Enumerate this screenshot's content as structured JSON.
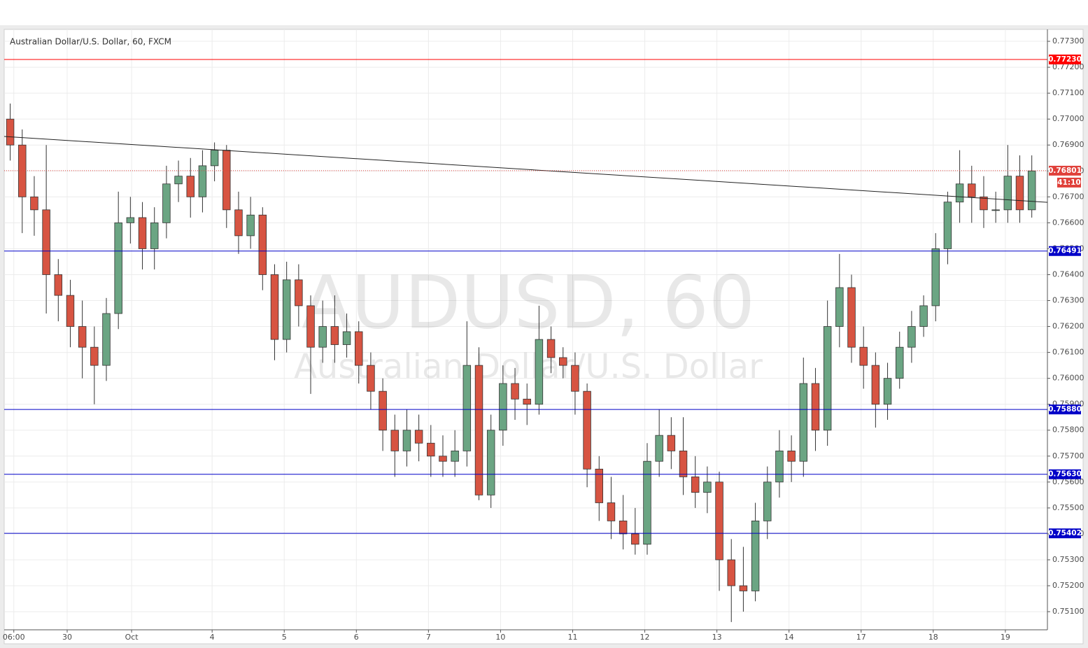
{
  "chart_data": {
    "type": "candlestick",
    "title": "Australian Dollar/U.S. Dollar, 60, FXCM",
    "watermark": {
      "symbol": "AUDUSD, 60",
      "description": "Australian Dollar/U.S. Dollar"
    },
    "up_color": "#6ba583",
    "down_color": "#d75442",
    "grid": true,
    "xlim": [
      0,
      86.8
    ],
    "ylim": [
      0.7503,
      0.77346
    ],
    "xticks": [
      {
        "value": 0.8,
        "label": "06:00"
      },
      {
        "value": 5.24,
        "label": "30"
      },
      {
        "value": 10.6,
        "label": "Oct"
      },
      {
        "value": 17.3,
        "label": "4"
      },
      {
        "value": 23.3,
        "label": "5"
      },
      {
        "value": 29.3,
        "label": "6"
      },
      {
        "value": 35.3,
        "label": "7"
      },
      {
        "value": 41.3,
        "label": "10"
      },
      {
        "value": 47.3,
        "label": "11"
      },
      {
        "value": 53.3,
        "label": "12"
      },
      {
        "value": 59.3,
        "label": "13"
      },
      {
        "value": 65.3,
        "label": "14"
      },
      {
        "value": 71.3,
        "label": "17"
      },
      {
        "value": 77.3,
        "label": "18"
      },
      {
        "value": 83.3,
        "label": "19"
      }
    ],
    "yticks": [
      {
        "value": 0.751,
        "label": "0.75100"
      },
      {
        "value": 0.752,
        "label": "0.75200"
      },
      {
        "value": 0.753,
        "label": "0.75300"
      },
      {
        "value": 0.754,
        "label": "0.75400"
      },
      {
        "value": 0.755,
        "label": "0.75500"
      },
      {
        "value": 0.756,
        "label": "0.75600"
      },
      {
        "value": 0.757,
        "label": "0.75700"
      },
      {
        "value": 0.758,
        "label": "0.75800"
      },
      {
        "value": 0.759,
        "label": "0.75900"
      },
      {
        "value": 0.76,
        "label": "0.76000"
      },
      {
        "value": 0.761,
        "label": "0.76100"
      },
      {
        "value": 0.762,
        "label": "0.76200"
      },
      {
        "value": 0.763,
        "label": "0.76300"
      },
      {
        "value": 0.764,
        "label": "0.76400"
      },
      {
        "value": 0.765,
        "label": "0.76500"
      },
      {
        "value": 0.766,
        "label": "0.76600"
      },
      {
        "value": 0.767,
        "label": "0.76700"
      },
      {
        "value": 0.768,
        "label": "0.76800"
      },
      {
        "value": 0.769,
        "label": "0.76900"
      },
      {
        "value": 0.77,
        "label": "0.77000"
      },
      {
        "value": 0.771,
        "label": "0.77100"
      },
      {
        "value": 0.772,
        "label": "0.77200"
      },
      {
        "value": 0.773,
        "label": "0.77300"
      }
    ],
    "x": [
      0.5,
      1.5,
      2.5,
      3.5,
      4.5,
      5.5,
      6.5,
      7.5,
      8.5,
      9.5,
      10.5,
      11.5,
      12.5,
      13.5,
      14.5,
      15.5,
      16.5,
      17.5,
      18.5,
      19.5,
      20.5,
      21.5,
      22.5,
      23.5,
      24.5,
      25.5,
      26.5,
      27.5,
      28.5,
      29.5,
      30.5,
      31.5,
      32.5,
      33.5,
      34.5,
      35.5,
      36.5,
      37.5,
      38.5,
      39.5,
      40.5,
      41.5,
      42.5,
      43.5,
      44.5,
      45.5,
      46.5,
      47.5,
      48.5,
      49.5,
      50.5,
      51.5,
      52.5,
      53.5,
      54.5,
      55.5,
      56.5,
      57.5,
      58.5,
      59.5,
      60.5,
      61.5,
      62.5,
      63.5,
      64.5,
      65.5,
      66.5,
      67.5,
      68.5,
      69.5,
      70.5,
      71.5,
      72.5,
      73.5,
      74.5,
      75.5,
      76.5,
      77.5,
      78.5,
      79.5,
      80.5,
      81.5,
      82.5,
      83.5,
      84.5,
      85.5
    ],
    "open": [
      0.77,
      0.769,
      0.767,
      0.7665,
      0.764,
      0.7632,
      0.762,
      0.7612,
      0.7605,
      0.7625,
      0.766,
      0.7662,
      0.765,
      0.766,
      0.7675,
      0.7678,
      0.767,
      0.7682,
      0.7688,
      0.7665,
      0.7655,
      0.7663,
      0.764,
      0.7615,
      0.7638,
      0.7628,
      0.7612,
      0.762,
      0.7613,
      0.7618,
      0.7605,
      0.7595,
      0.758,
      0.7572,
      0.758,
      0.7575,
      0.757,
      0.7568,
      0.7572,
      0.7605,
      0.7555,
      0.758,
      0.7598,
      0.7592,
      0.759,
      0.7615,
      0.7608,
      0.7605,
      0.7595,
      0.7565,
      0.7552,
      0.7545,
      0.754,
      0.7536,
      0.7568,
      0.7578,
      0.7572,
      0.7562,
      0.7556,
      0.756,
      0.753,
      0.752,
      0.7518,
      0.7545,
      0.756,
      0.7572,
      0.7568,
      0.7598,
      0.758,
      0.762,
      0.7635,
      0.7612,
      0.7605,
      0.759,
      0.76,
      0.7612,
      0.762,
      0.7628,
      0.765,
      0.7668,
      0.7675,
      0.767,
      0.7665,
      0.7665,
      0.7678,
      0.7665
    ],
    "high": [
      0.7706,
      0.7696,
      0.7678,
      0.769,
      0.7646,
      0.7638,
      0.763,
      0.762,
      0.7631,
      0.7672,
      0.767,
      0.7668,
      0.7666,
      0.7682,
      0.7684,
      0.7685,
      0.7688,
      0.7691,
      0.769,
      0.7672,
      0.767,
      0.7666,
      0.7644,
      0.7645,
      0.7644,
      0.7632,
      0.763,
      0.7632,
      0.7625,
      0.7622,
      0.761,
      0.76,
      0.7586,
      0.7588,
      0.7586,
      0.7582,
      0.7578,
      0.758,
      0.7622,
      0.7612,
      0.7586,
      0.7605,
      0.7604,
      0.7598,
      0.7628,
      0.762,
      0.7612,
      0.761,
      0.7598,
      0.757,
      0.7562,
      0.7555,
      0.755,
      0.7575,
      0.7588,
      0.7585,
      0.7585,
      0.757,
      0.7566,
      0.7564,
      0.7538,
      0.7535,
      0.7552,
      0.7566,
      0.758,
      0.7578,
      0.7608,
      0.7604,
      0.763,
      0.7648,
      0.764,
      0.762,
      0.761,
      0.7606,
      0.7618,
      0.7626,
      0.7632,
      0.7656,
      0.7672,
      0.7688,
      0.7682,
      0.7678,
      0.7672,
      0.769,
      0.7686,
      0.7686
    ],
    "low": [
      0.7684,
      0.7656,
      0.7655,
      0.7625,
      0.7622,
      0.7612,
      0.76,
      0.759,
      0.7599,
      0.7619,
      0.7652,
      0.7642,
      0.7642,
      0.7654,
      0.7668,
      0.7662,
      0.7664,
      0.7676,
      0.7658,
      0.7648,
      0.765,
      0.7634,
      0.7607,
      0.761,
      0.762,
      0.7594,
      0.7606,
      0.7606,
      0.7608,
      0.7598,
      0.7588,
      0.7572,
      0.7562,
      0.7566,
      0.7568,
      0.7562,
      0.7562,
      0.7562,
      0.7566,
      0.7553,
      0.755,
      0.7574,
      0.7584,
      0.7582,
      0.7586,
      0.7602,
      0.76,
      0.7586,
      0.7558,
      0.7545,
      0.7538,
      0.7534,
      0.7532,
      0.7532,
      0.7562,
      0.7565,
      0.7555,
      0.755,
      0.7548,
      0.7518,
      0.7506,
      0.751,
      0.7514,
      0.7538,
      0.7554,
      0.756,
      0.7562,
      0.7572,
      0.7574,
      0.7612,
      0.7606,
      0.7596,
      0.7581,
      0.7584,
      0.7596,
      0.7606,
      0.7616,
      0.7622,
      0.7644,
      0.766,
      0.766,
      0.7658,
      0.766,
      0.766,
      0.766,
      0.7662
    ],
    "close": [
      0.769,
      0.767,
      0.7665,
      0.764,
      0.7632,
      0.762,
      0.7612,
      0.7605,
      0.7625,
      0.766,
      0.7662,
      0.765,
      0.766,
      0.7675,
      0.7678,
      0.767,
      0.7682,
      0.7688,
      0.7665,
      0.7655,
      0.7663,
      0.764,
      0.7615,
      0.7638,
      0.7628,
      0.7612,
      0.762,
      0.7613,
      0.7618,
      0.7605,
      0.7595,
      0.758,
      0.7572,
      0.758,
      0.7575,
      0.757,
      0.7568,
      0.7572,
      0.7605,
      0.7555,
      0.758,
      0.7598,
      0.7592,
      0.759,
      0.7615,
      0.7608,
      0.7605,
      0.7595,
      0.7565,
      0.7552,
      0.7545,
      0.754,
      0.7536,
      0.7568,
      0.7578,
      0.7572,
      0.7562,
      0.7556,
      0.756,
      0.753,
      0.752,
      0.7518,
      0.7545,
      0.756,
      0.7572,
      0.7568,
      0.7598,
      0.758,
      0.762,
      0.7635,
      0.7612,
      0.7605,
      0.759,
      0.76,
      0.7612,
      0.762,
      0.7628,
      0.765,
      0.7668,
      0.7675,
      0.767,
      0.7665,
      0.7665,
      0.7678,
      0.7665,
      0.768
    ],
    "levels": [
      {
        "value": 0.7723,
        "label": "0.77230",
        "color": "#ff0000"
      },
      {
        "value": 0.76491,
        "label": "0.76491",
        "color": "#0000c8"
      },
      {
        "value": 0.7588,
        "label": "0.75880",
        "color": "#0000c8"
      },
      {
        "value": 0.7563,
        "label": "0.75630",
        "color": "#0000c8"
      },
      {
        "value": 0.75402,
        "label": "0.75402",
        "color": "#0000c8"
      }
    ],
    "last_price": {
      "value": 0.76801,
      "label": "0.76801",
      "countdown": "41:10",
      "color": "#e0403a"
    },
    "trendline": {
      "x": [
        0,
        86.8
      ],
      "y": [
        0.76933,
        0.76679
      ],
      "color": "#222222"
    }
  }
}
